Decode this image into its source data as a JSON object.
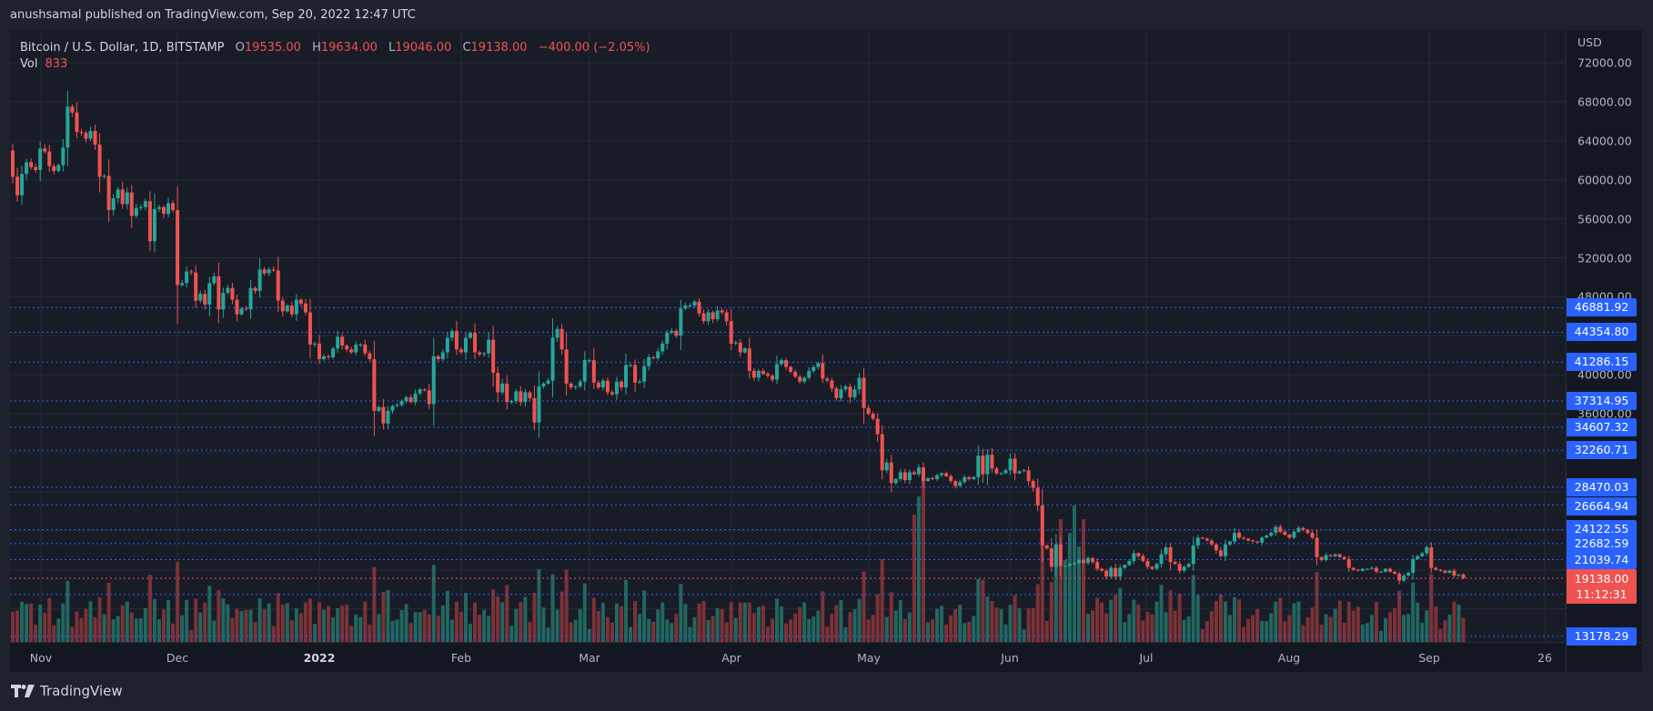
{
  "publish_note": "anushsamal published on TradingView.com, Sep 20, 2022 12:47 UTC",
  "legend": {
    "symbol": "Bitcoin / U.S. Dollar, 1D, BITSTAMP",
    "open_label": "O",
    "open": "19535.00",
    "high_label": "H",
    "high": "19634.00",
    "low_label": "L",
    "low": "19046.00",
    "close_label": "C",
    "close": "19138.00",
    "change": "−400.00 (−2.05%)",
    "vol_label": "Vol",
    "vol_value": "833"
  },
  "price_axis": {
    "currency": "USD",
    "ticks": [
      "72000.00",
      "68000.00",
      "64000.00",
      "60000.00",
      "56000.00",
      "52000.00",
      "48000.00",
      "40000.00",
      "36000.00"
    ],
    "levels": [
      "46881.92",
      "44354.80",
      "41286.15",
      "37314.95",
      "34607.32",
      "32260.71",
      "28470.03",
      "26664.94",
      "24122.55",
      "22682.59",
      "21039.74",
      "17476.14",
      "13178.29"
    ],
    "current_price": "19138.00",
    "countdown": "11:12:31"
  },
  "time_axis": {
    "labels": [
      "Nov",
      "Dec",
      "2022",
      "Feb",
      "Mar",
      "Apr",
      "May",
      "Jun",
      "Jul",
      "Aug",
      "Sep",
      "26"
    ]
  },
  "footer": {
    "brand": "TradingView"
  },
  "colors": {
    "up": "#26a69a",
    "down": "#ef5350",
    "vol_up": "#22675f",
    "vol_down": "#7c3237",
    "level_line": "#2962ff",
    "current_line": "#ef5350",
    "grid": "#262a35"
  },
  "chart_data": {
    "type": "candlestick",
    "title": "Bitcoin / U.S. Dollar, 1D, BITSTAMP",
    "xlabel": "",
    "ylabel": "USD",
    "ylim": [
      12000,
      73000
    ],
    "grid": true,
    "x_start": "2021-10-26",
    "x_end": "2022-09-20",
    "x_tick_labels": [
      "Nov",
      "Dec",
      "2022",
      "Feb",
      "Mar",
      "Apr",
      "May",
      "Jun",
      "Jul",
      "Aug",
      "Sep",
      "26"
    ],
    "y_tick_labels": [
      "72000.00",
      "68000.00",
      "64000.00",
      "60000.00",
      "56000.00",
      "52000.00",
      "48000.00",
      "40000.00",
      "36000.00"
    ],
    "horizontal_levels": [
      46881.92,
      44354.8,
      41286.15,
      37314.95,
      34607.32,
      32260.71,
      28470.03,
      26664.94,
      24122.55,
      22682.59,
      21039.74,
      17476.14,
      13178.29
    ],
    "last_bar": {
      "date": "2022-09-20",
      "open": 19535.0,
      "high": 19634.0,
      "low": 19046.0,
      "close": 19138.0,
      "change": -400.0,
      "change_pct": -2.05,
      "volume": 833
    },
    "series": [
      {
        "name": "BTCUSD daily close (approx.)",
        "open_first": 63000,
        "closes": [
          60300,
          58400,
          60600,
          61800,
          61300,
          61000,
          63200,
          62900,
          61400,
          60900,
          61500,
          63300,
          67500,
          66900,
          64900,
          64800,
          64200,
          65000,
          63600,
          60300,
          60400,
          56900,
          58100,
          59000,
          57500,
          58700,
          56300,
          57100,
          57200,
          57800,
          53700,
          57000,
          57200,
          56500,
          57600,
          56900,
          49200,
          49400,
          50600,
          50500,
          47600,
          48300,
          47200,
          49400,
          50100,
          46700,
          48400,
          48900,
          47700,
          46200,
          46800,
          46700,
          48900,
          48600,
          50800,
          50400,
          50800,
          50700,
          47600,
          46500,
          47100,
          46200,
          47700,
          47300,
          46400,
          43100,
          43200,
          41600,
          41900,
          41800,
          42700,
          43900,
          43000,
          42600,
          42300,
          43100,
          43100,
          42200,
          41600,
          36300,
          36700,
          35000,
          36300,
          36800,
          36900,
          37300,
          37700,
          37200,
          38100,
          38500,
          38400,
          37000,
          41900,
          41600,
          42300,
          43800,
          44500,
          42600,
          42300,
          43800,
          44300,
          42300,
          42100,
          42200,
          43600,
          40200,
          38200,
          39100,
          37200,
          37300,
          38300,
          37200,
          38200,
          37600,
          35100,
          38800,
          39100,
          39400,
          43800,
          44700,
          42600,
          39100,
          38700,
          38800,
          39300,
          41500,
          41500,
          39200,
          38700,
          39400,
          38200,
          38000,
          39300,
          38700,
          41000,
          41000,
          39200,
          39300,
          40900,
          41800,
          41700,
          42400,
          43200,
          44300,
          44500,
          44000,
          46800,
          47100,
          47100,
          47500,
          46300,
          45500,
          46400,
          45700,
          46600,
          46400,
          45500,
          43200,
          43300,
          42300,
          42700,
          40400,
          39700,
          40400,
          40100,
          39900,
          39500,
          41100,
          41500,
          40800,
          40300,
          39800,
          39300,
          39700,
          40400,
          40800,
          41200,
          39600,
          39400,
          38600,
          37600,
          38500,
          38800,
          37700,
          38500,
          39700,
          36600,
          36000,
          35500,
          33900,
          30200,
          31000,
          28900,
          29300,
          30000,
          29200,
          30000,
          29800,
          30500,
          29100,
          29400,
          29300,
          29700,
          29900,
          29600,
          29100,
          28600,
          29000,
          29500,
          29300,
          29500,
          31700,
          29800,
          31800,
          30400,
          29900,
          29900,
          30200,
          31400,
          29900,
          30100,
          30200,
          29100,
          28400,
          26600,
          22500,
          22200,
          20300,
          22600,
          20400,
          20400,
          20600,
          20700,
          21000,
          20700,
          21200,
          20800,
          20100,
          19900,
          19300,
          20200,
          19300,
          20200,
          20500,
          20900,
          21700,
          21400,
          20900,
          20300,
          20100,
          20600,
          21600,
          22300,
          20800,
          20600,
          19900,
          20300,
          20600,
          22500,
          23300,
          23200,
          23000,
          22600,
          22000,
          21400,
          22600,
          22900,
          23800,
          23300,
          23200,
          23000,
          22900,
          22800,
          23300,
          23500,
          23800,
          24400,
          23900,
          23600,
          23300,
          23900,
          24300,
          24100,
          23800,
          23300,
          21300,
          21000,
          21500,
          21400,
          21600,
          21300,
          21100,
          20200,
          20000,
          19900,
          20100,
          20100,
          20200,
          19800,
          19800,
          20100,
          19800,
          19600,
          18900,
          19400,
          19700,
          21100,
          21400,
          21700,
          22300,
          20200,
          20000,
          19900,
          19700,
          19900,
          19400,
          19500,
          19140
        ]
      }
    ]
  }
}
